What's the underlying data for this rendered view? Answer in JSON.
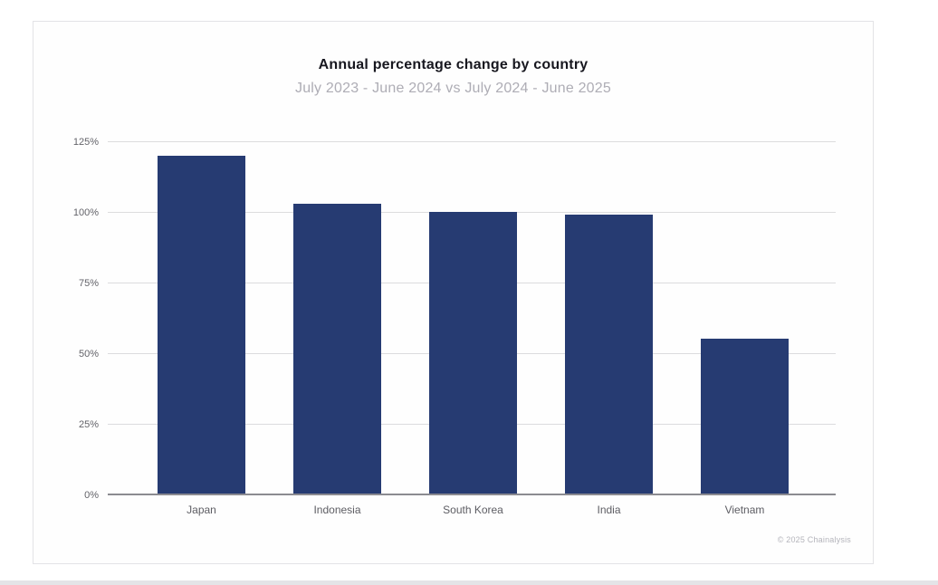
{
  "page": {
    "footer_credit": "© 2025 Chainalysis"
  },
  "chart_data": {
    "type": "bar",
    "title": "Annual percentage change by country",
    "subtitle": "July 2023 - June 2024 vs July 2024 - June 2025",
    "categories": [
      "Japan",
      "Indonesia",
      "South Korea",
      "India",
      "Vietnam"
    ],
    "values": [
      120,
      103,
      100,
      99,
      55
    ],
    "unit": "%",
    "xlabel": "",
    "ylabel": "",
    "ylim": [
      0,
      125
    ],
    "y_ticks": [
      0,
      25,
      50,
      75,
      100,
      125
    ],
    "y_tick_labels": [
      "0%",
      "25%",
      "50%",
      "75%",
      "100%",
      "125%"
    ],
    "grid": true,
    "legend": false,
    "bar_color": "#263b72",
    "gridline_color": "#dcdcde",
    "baseline_color": "#8b8b90"
  }
}
